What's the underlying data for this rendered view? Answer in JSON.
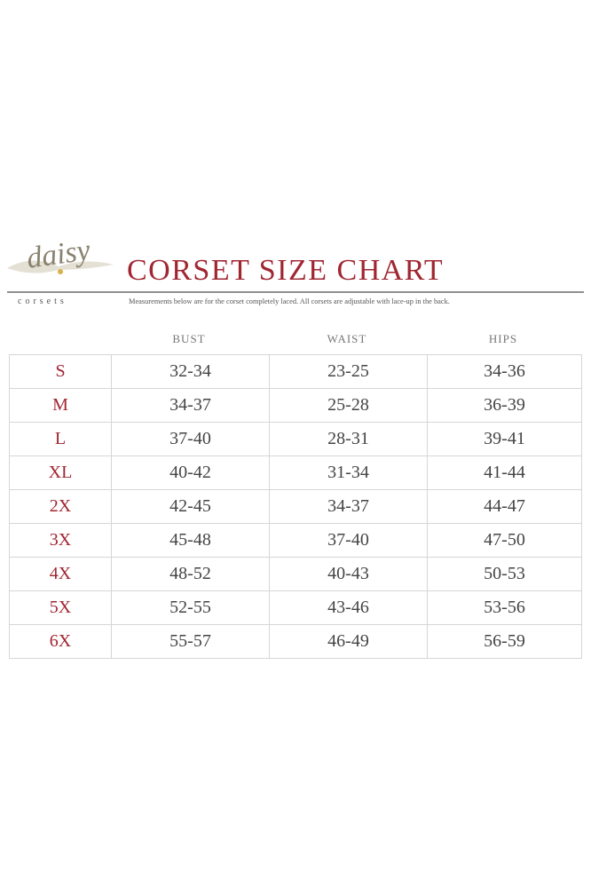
{
  "logo": {
    "script": "daisy",
    "word": "corsets"
  },
  "title": "CORSET SIZE CHART",
  "subtitle": "Measurements below are for the corset completely laced. All corsets are adjustable with lace-up in the back.",
  "colors": {
    "accent": "#a02632",
    "text": "#444444",
    "grid": "#d6d6d6"
  },
  "columns": [
    "BUST",
    "WAIST",
    "HIPS"
  ],
  "rows": [
    {
      "size": "S",
      "bust": "32-34",
      "waist": "23-25",
      "hips": "34-36"
    },
    {
      "size": "M",
      "bust": "34-37",
      "waist": "25-28",
      "hips": "36-39"
    },
    {
      "size": "L",
      "bust": "37-40",
      "waist": "28-31",
      "hips": "39-41"
    },
    {
      "size": "XL",
      "bust": "40-42",
      "waist": "31-34",
      "hips": "41-44"
    },
    {
      "size": "2X",
      "bust": "42-45",
      "waist": "34-37",
      "hips": "44-47"
    },
    {
      "size": "3X",
      "bust": "45-48",
      "waist": "37-40",
      "hips": "47-50"
    },
    {
      "size": "4X",
      "bust": "48-52",
      "waist": "40-43",
      "hips": "50-53"
    },
    {
      "size": "5X",
      "bust": "52-55",
      "waist": "43-46",
      "hips": "53-56"
    },
    {
      "size": "6X",
      "bust": "55-57",
      "waist": "46-49",
      "hips": "56-59"
    }
  ]
}
